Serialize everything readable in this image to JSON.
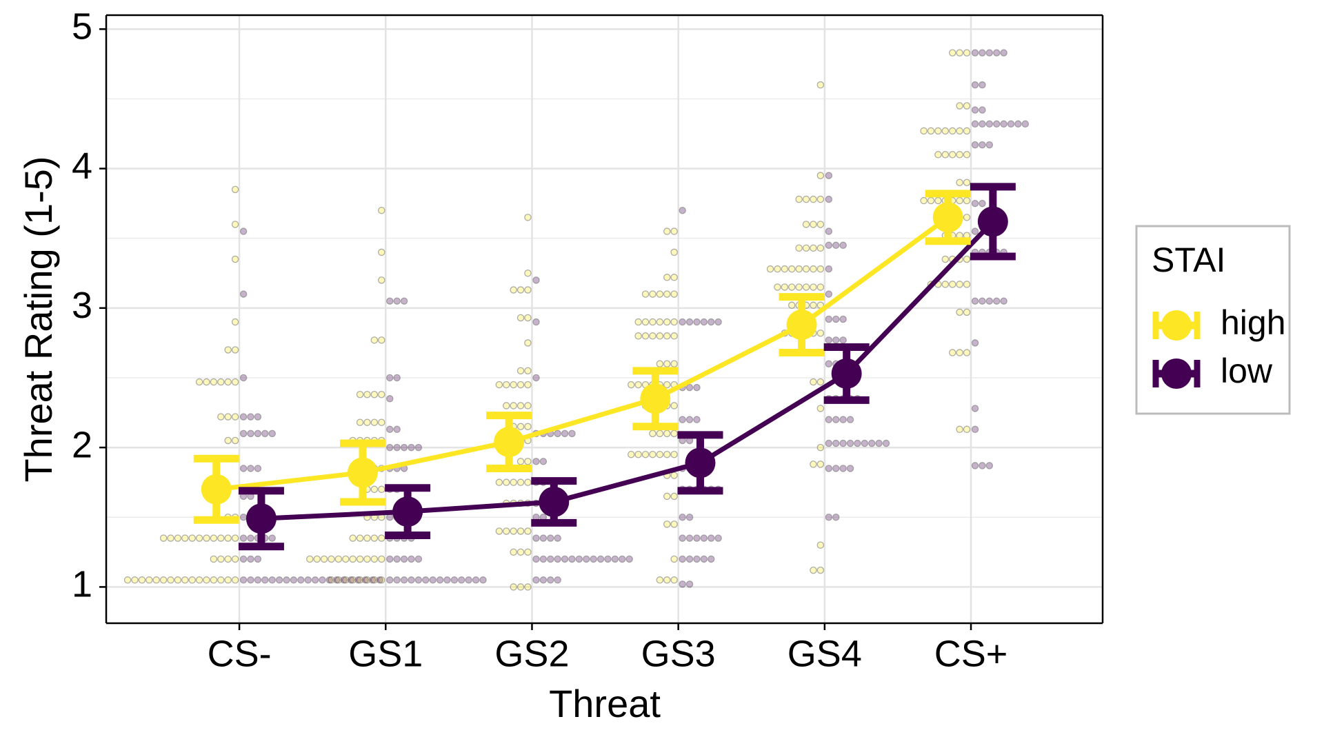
{
  "chart_data": {
    "type": "line",
    "x_label": "Threat",
    "y_label": "Threat Rating (1-5)",
    "categories": [
      "CS-",
      "GS1",
      "GS2",
      "GS3",
      "GS4",
      "CS+"
    ],
    "ylim": [
      0.74,
      5.1
    ],
    "yticks": [
      1,
      2,
      3,
      4,
      5
    ],
    "grid": true,
    "legend_title": "STAI",
    "legend_position": "right",
    "series": [
      {
        "name": "high",
        "color": "#FDE725",
        "values": [
          1.7,
          1.82,
          2.04,
          2.35,
          2.88,
          3.65
        ],
        "errors": [
          0.22,
          0.21,
          0.19,
          0.2,
          0.2,
          0.17
        ],
        "dots": [
          [
            [
              1.05,
              16
            ],
            [
              1.2,
              4
            ],
            [
              1.35,
              11
            ],
            [
              1.5,
              2
            ],
            [
              2.05,
              2
            ],
            [
              2.22,
              3
            ],
            [
              2.47,
              6
            ],
            [
              2.7,
              2
            ],
            [
              2.9,
              1
            ],
            [
              3.35,
              1
            ],
            [
              3.6,
              1
            ],
            [
              3.85,
              1
            ]
          ],
          [
            [
              1.05,
              8
            ],
            [
              1.2,
              11
            ],
            [
              1.35,
              5
            ],
            [
              1.5,
              3
            ],
            [
              1.7,
              3
            ],
            [
              1.85,
              3
            ],
            [
              2.05,
              5
            ],
            [
              2.18,
              4
            ],
            [
              2.38,
              4
            ],
            [
              2.77,
              2
            ],
            [
              3.2,
              1
            ],
            [
              3.4,
              1
            ],
            [
              3.7,
              1
            ]
          ],
          [
            [
              1.0,
              3
            ],
            [
              1.25,
              3
            ],
            [
              1.4,
              5
            ],
            [
              1.6,
              4
            ],
            [
              1.75,
              5
            ],
            [
              1.9,
              2
            ],
            [
              2.05,
              4
            ],
            [
              2.15,
              3
            ],
            [
              2.3,
              4
            ],
            [
              2.45,
              5
            ],
            [
              2.55,
              2
            ],
            [
              2.75,
              1
            ],
            [
              2.93,
              2
            ],
            [
              3.13,
              3
            ],
            [
              3.25,
              1
            ],
            [
              3.65,
              1
            ]
          ],
          [
            [
              1.05,
              3
            ],
            [
              1.2,
              1
            ],
            [
              1.45,
              2
            ],
            [
              1.65,
              2
            ],
            [
              1.8,
              2
            ],
            [
              1.95,
              7
            ],
            [
              2.1,
              4
            ],
            [
              2.3,
              5
            ],
            [
              2.45,
              7
            ],
            [
              2.6,
              3
            ],
            [
              2.8,
              6
            ],
            [
              2.9,
              6
            ],
            [
              3.1,
              5
            ],
            [
              3.22,
              2
            ],
            [
              3.4,
              1
            ],
            [
              3.55,
              2
            ]
          ],
          [
            [
              1.12,
              2
            ],
            [
              1.3,
              1
            ],
            [
              1.88,
              2
            ],
            [
              2.0,
              1
            ],
            [
              2.28,
              1
            ],
            [
              2.47,
              2
            ],
            [
              2.68,
              5
            ],
            [
              2.82,
              6
            ],
            [
              3.02,
              5
            ],
            [
              3.15,
              7
            ],
            [
              3.28,
              8
            ],
            [
              3.43,
              4
            ],
            [
              3.6,
              3
            ],
            [
              3.78,
              4
            ],
            [
              3.95,
              1
            ],
            [
              4.6,
              1
            ]
          ],
          [
            [
              2.13,
              2
            ],
            [
              2.68,
              3
            ],
            [
              2.97,
              2
            ],
            [
              3.17,
              6
            ],
            [
              3.35,
              4
            ],
            [
              3.52,
              4
            ],
            [
              3.65,
              3
            ],
            [
              3.77,
              7
            ],
            [
              3.9,
              2
            ],
            [
              4.1,
              5
            ],
            [
              4.27,
              7
            ],
            [
              4.45,
              2
            ],
            [
              4.83,
              3
            ]
          ]
        ]
      },
      {
        "name": "low",
        "color": "#440154",
        "values": [
          1.49,
          1.54,
          1.61,
          1.89,
          2.53,
          3.62
        ],
        "errors": [
          0.2,
          0.17,
          0.15,
          0.2,
          0.19,
          0.25
        ],
        "dots": [
          [
            [
              1.05,
              20
            ],
            [
              1.2,
              3
            ],
            [
              1.35,
              5
            ],
            [
              1.5,
              1
            ],
            [
              1.65,
              2
            ],
            [
              1.85,
              3
            ],
            [
              2.1,
              5
            ],
            [
              2.22,
              3
            ],
            [
              2.5,
              1
            ],
            [
              3.1,
              1
            ],
            [
              3.55,
              1
            ]
          ],
          [
            [
              1.05,
              14
            ],
            [
              1.2,
              5
            ],
            [
              1.35,
              4
            ],
            [
              1.5,
              4
            ],
            [
              1.7,
              2
            ],
            [
              1.85,
              3
            ],
            [
              2.0,
              5
            ],
            [
              2.13,
              2
            ],
            [
              2.35,
              1
            ],
            [
              2.5,
              2
            ],
            [
              3.05,
              3
            ]
          ],
          [
            [
              1.05,
              4
            ],
            [
              1.2,
              14
            ],
            [
              1.35,
              4
            ],
            [
              1.5,
              2
            ],
            [
              1.6,
              1
            ],
            [
              1.75,
              2
            ],
            [
              1.9,
              2
            ],
            [
              2.1,
              6
            ],
            [
              2.5,
              1
            ],
            [
              2.9,
              1
            ],
            [
              3.2,
              1
            ]
          ],
          [
            [
              1.02,
              2
            ],
            [
              1.2,
              5
            ],
            [
              1.35,
              6
            ],
            [
              1.5,
              2
            ],
            [
              1.7,
              6
            ],
            [
              1.85,
              3
            ],
            [
              2.05,
              2
            ],
            [
              2.2,
              3
            ],
            [
              2.43,
              3
            ],
            [
              2.9,
              6
            ],
            [
              3.7,
              1
            ]
          ],
          [
            [
              1.5,
              2
            ],
            [
              1.85,
              4
            ],
            [
              2.03,
              9
            ],
            [
              2.2,
              4
            ],
            [
              2.35,
              5
            ],
            [
              2.6,
              4
            ],
            [
              2.77,
              3
            ],
            [
              2.92,
              3
            ],
            [
              3.1,
              1
            ],
            [
              3.28,
              1
            ],
            [
              3.45,
              3
            ],
            [
              3.55,
              1
            ],
            [
              3.78,
              1
            ],
            [
              3.95,
              1
            ]
          ],
          [
            [
              1.87,
              3
            ],
            [
              2.13,
              1
            ],
            [
              2.28,
              1
            ],
            [
              2.75,
              1
            ],
            [
              3.05,
              5
            ],
            [
              3.4,
              5
            ],
            [
              3.55,
              1
            ],
            [
              3.75,
              2
            ],
            [
              4.17,
              3
            ],
            [
              4.32,
              8
            ],
            [
              4.42,
              2
            ],
            [
              4.6,
              2
            ],
            [
              4.83,
              5
            ]
          ]
        ]
      }
    ]
  }
}
